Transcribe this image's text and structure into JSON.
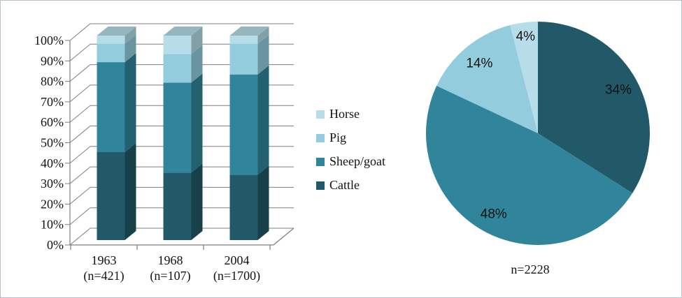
{
  "figure": {
    "description": "Two-panel livestock composition figure: 3D 100% stacked columns by year and an aggregate pie chart"
  },
  "legend": {
    "items": [
      {
        "label": "Horse",
        "color": "#B7DEE8"
      },
      {
        "label": "Pig",
        "color": "#93CDDD"
      },
      {
        "label": "Sheep/goat",
        "color": "#31859B"
      },
      {
        "label": "Cattle",
        "color": "#215968"
      }
    ]
  },
  "chart_data": [
    {
      "type": "bar",
      "subtype": "stacked-100pct-3d-column",
      "categories": [
        "1963",
        "1968",
        "2004"
      ],
      "category_sublabels": [
        "(n=421)",
        "(n=107)",
        "(n=1700)"
      ],
      "series": [
        {
          "name": "Cattle",
          "color": "#215968",
          "values": [
            43,
            33,
            32
          ]
        },
        {
          "name": "Sheep/goat",
          "color": "#31859B",
          "values": [
            44,
            44,
            49
          ]
        },
        {
          "name": "Pig",
          "color": "#93CDDD",
          "values": [
            9,
            14,
            15
          ]
        },
        {
          "name": "Horse",
          "color": "#B7DEE8",
          "values": [
            4,
            9,
            4
          ]
        }
      ],
      "stack_order_bottom_to_top": [
        "Cattle",
        "Sheep/goat",
        "Pig",
        "Horse"
      ],
      "values_are_estimates_pct": true,
      "ylim": [
        0,
        100
      ],
      "ytick_labels": [
        "0%",
        "10%",
        "20%",
        "30%",
        "40%",
        "50%",
        "60%",
        "70%",
        "80%",
        "90%",
        "100%"
      ],
      "grid": true,
      "legend_position": "right",
      "title": "",
      "xlabel": "",
      "ylabel": ""
    },
    {
      "type": "pie",
      "start_angle_deg": 0,
      "direction": "clockwise",
      "slices": [
        {
          "label": "Cattle",
          "pct": 34,
          "color": "#215968",
          "data_label": "34%"
        },
        {
          "label": "Sheep/goat",
          "pct": 48,
          "color": "#31859B",
          "data_label": "48%"
        },
        {
          "label": "Pig",
          "pct": 14,
          "color": "#93CDDD",
          "data_label": "14%"
        },
        {
          "label": "Horse",
          "pct": 4,
          "color": "#B7DEE8",
          "data_label": "4%"
        }
      ],
      "caption": "n=2228",
      "title": ""
    }
  ]
}
